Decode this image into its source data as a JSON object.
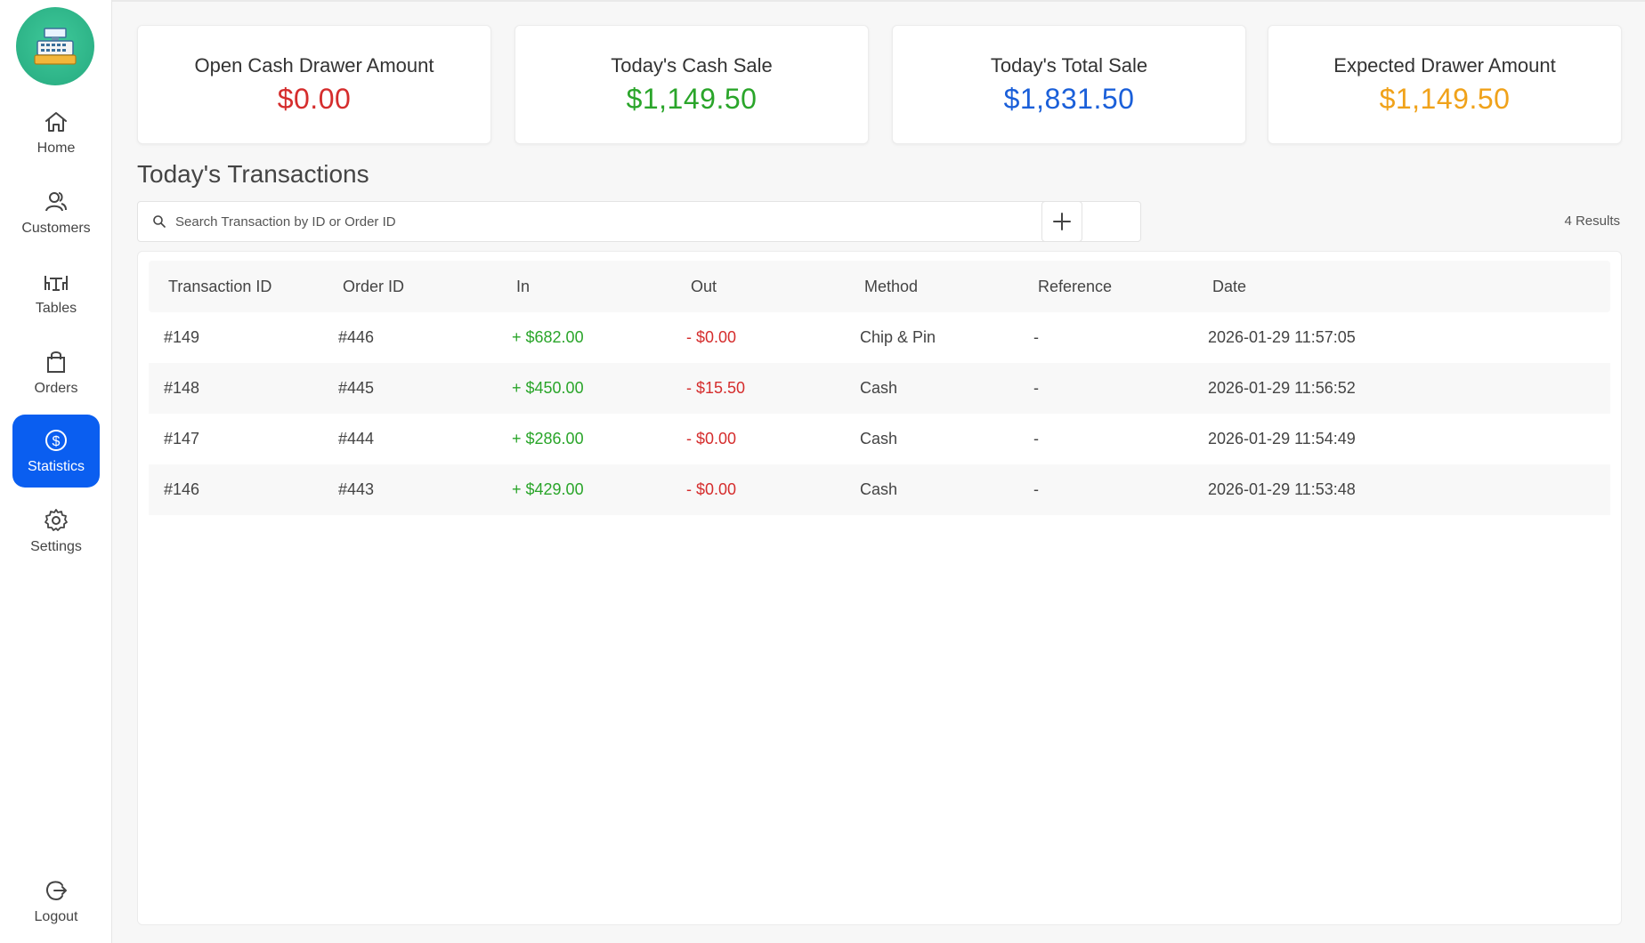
{
  "sidebar": {
    "logo_icon": "cash-register-icon",
    "items": [
      {
        "label": "Home",
        "icon": "home-icon"
      },
      {
        "label": "Customers",
        "icon": "customers-icon"
      },
      {
        "label": "Tables",
        "icon": "tables-icon"
      },
      {
        "label": "Orders",
        "icon": "shopping-bag-icon"
      },
      {
        "label": "Statistics",
        "icon": "dollar-circle-icon",
        "active": true
      },
      {
        "label": "Settings",
        "icon": "gear-icon"
      }
    ],
    "logout": {
      "label": "Logout",
      "icon": "logout-icon"
    }
  },
  "cards": [
    {
      "title": "Open Cash Drawer Amount",
      "value": "$0.00",
      "color": "#d52d2d"
    },
    {
      "title": "Today's Cash Sale",
      "value": "$1,149.50",
      "color": "#2aa52a"
    },
    {
      "title": "Today's Total Sale",
      "value": "$1,831.50",
      "color": "#1a5fd9"
    },
    {
      "title": "Expected Drawer Amount",
      "value": "$1,149.50",
      "color": "#f0a21a"
    }
  ],
  "transactions": {
    "title": "Today's Transactions",
    "search_placeholder": "Search Transaction by ID or Order ID",
    "results": "4 Results",
    "columns": [
      "Transaction ID",
      "Order ID",
      "In",
      "Out",
      "Method",
      "Reference",
      "Date"
    ],
    "rows": [
      {
        "id": "#149",
        "order": "#446",
        "in": "+ $682.00",
        "out": "- $0.00",
        "method": "Chip & Pin",
        "reference": "-",
        "date": "2026-01-29 11:57:05"
      },
      {
        "id": "#148",
        "order": "#445",
        "in": "+ $450.00",
        "out": "- $15.50",
        "method": "Cash",
        "reference": "-",
        "date": "2026-01-29 11:56:52"
      },
      {
        "id": "#147",
        "order": "#444",
        "in": "+ $286.00",
        "out": "- $0.00",
        "method": "Cash",
        "reference": "-",
        "date": "2026-01-29 11:54:49"
      },
      {
        "id": "#146",
        "order": "#443",
        "in": "+ $429.00",
        "out": "- $0.00",
        "method": "Cash",
        "reference": "-",
        "date": "2026-01-29 11:53:48"
      }
    ]
  }
}
